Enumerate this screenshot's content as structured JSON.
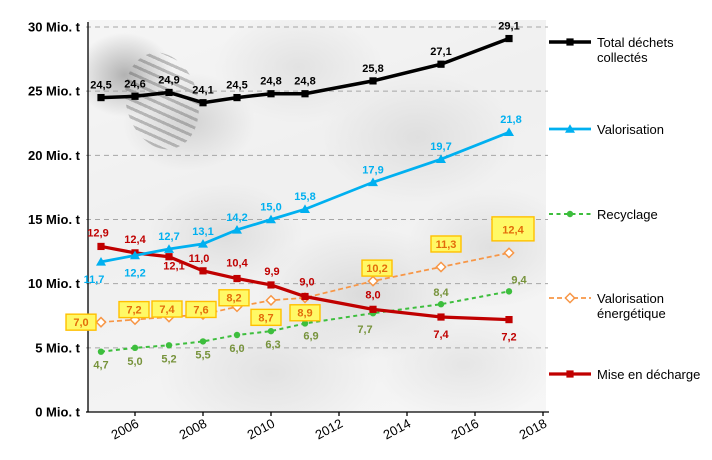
{
  "chart_data": {
    "type": "line",
    "title": "",
    "xlabel": "",
    "ylabel": "",
    "ylim": [
      0,
      30
    ],
    "grid": "horizontal-dashed",
    "legend_position": "right",
    "y_tick_labels": [
      "0 Mio. t",
      "5 Mio. t",
      "10 Mio. t",
      "15 Mio. t",
      "20 Mio. t",
      "25 Mio. t",
      "30 Mio. t"
    ],
    "x_tick_labels": [
      "2006",
      "2008",
      "2010",
      "2012",
      "2014",
      "2016",
      "2018"
    ],
    "x": [
      2005,
      2006,
      2007,
      2008,
      2009,
      2010,
      2011,
      2013,
      2015,
      2017
    ],
    "style": {
      "background": "#FFFFFF",
      "grid_color": "#A6A6A6",
      "box_fill": "#FFF966",
      "box_border": "#FFC000"
    },
    "series": [
      {
        "id": "total-dechets-collectes",
        "name": "Total déchets collectés",
        "color": "#000000",
        "marker": "square",
        "line": "solid",
        "width": 3.5,
        "dash": "",
        "boxed": false,
        "values": [
          24.5,
          24.6,
          24.9,
          24.1,
          24.5,
          24.8,
          24.8,
          25.8,
          27.1,
          29.1
        ],
        "labels": [
          "24,5",
          "24,6",
          "24,9",
          "24,1",
          "24,5",
          "24,8",
          "24,8",
          "25,8",
          "27,1",
          "29,1"
        ]
      },
      {
        "id": "valorisation",
        "name": "Valorisation",
        "color": "#00B0F0",
        "marker": "triangle",
        "line": "solid",
        "width": 2.75,
        "dash": "",
        "boxed": false,
        "values": [
          11.7,
          12.2,
          12.7,
          13.1,
          14.2,
          15.0,
          15.8,
          17.9,
          19.7,
          21.8
        ],
        "labels": [
          "11,7",
          "12,2",
          "12,7",
          "13,1",
          "14,2",
          "15,0",
          "15,8",
          "17,9",
          "19,7",
          "21,8"
        ]
      },
      {
        "id": "recyclage",
        "name": "Recyclage",
        "color": "#3DBE3D",
        "label_color": "#77933C",
        "marker": "circle",
        "line": "dashed",
        "width": 2,
        "dash": "4 3.5",
        "boxed": false,
        "values": [
          4.7,
          5.0,
          5.2,
          5.5,
          6.0,
          6.3,
          6.9,
          7.7,
          8.4,
          9.4
        ],
        "labels": [
          "4,7",
          "5,0",
          "5,2",
          "5,5",
          "6,0",
          "6,3",
          "6,9",
          "7,7",
          "8,4",
          "9,4"
        ]
      },
      {
        "id": "valorisation-energetique",
        "name": "Valorisation énergétique",
        "color": "#F79646",
        "label_color": "#E36C09",
        "marker": "diamond",
        "line": "dashed",
        "width": 1.75,
        "dash": "5 3",
        "boxed": true,
        "values": [
          7.0,
          7.2,
          7.4,
          7.6,
          8.2,
          8.7,
          8.9,
          10.2,
          11.3,
          12.4
        ],
        "labels": [
          "7,0",
          "7,2",
          "7,4",
          "7,6",
          "8,2",
          "8,7",
          "8,9",
          "10,2",
          "11,3",
          "12,4"
        ]
      },
      {
        "id": "mise-en-decharge",
        "name": "Mise en décharge",
        "color": "#C00000",
        "marker": "square",
        "line": "solid",
        "width": 3.25,
        "dash": "",
        "boxed": false,
        "values": [
          12.9,
          12.4,
          12.1,
          11.0,
          10.4,
          9.9,
          9.0,
          8.0,
          7.4,
          7.2
        ],
        "labels": [
          "12,9",
          "12,4",
          "12,1",
          "11,0",
          "10,4",
          "9,9",
          "9,0",
          "8,0",
          "7,4",
          "7,2"
        ]
      }
    ]
  }
}
